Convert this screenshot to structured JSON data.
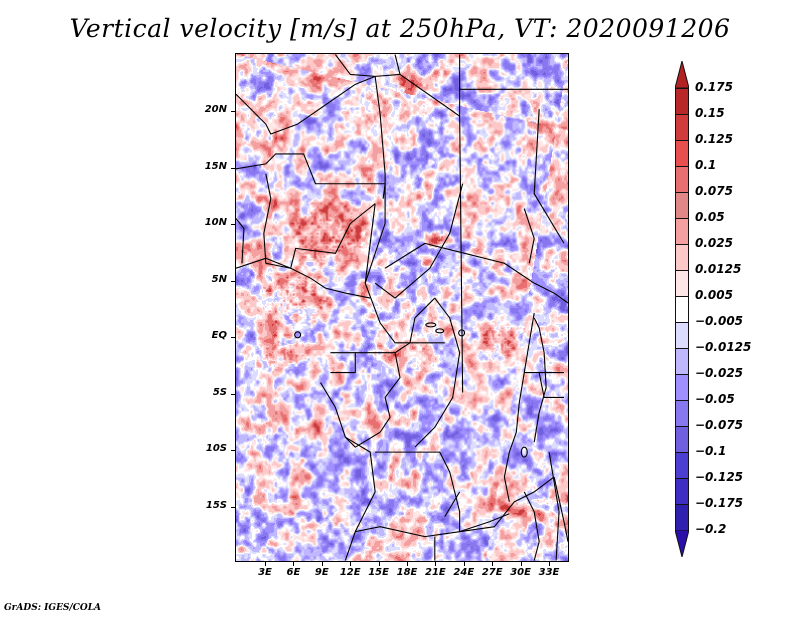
{
  "title": "Vertical velocity [m/s] at 250hPa, VT: 2020091206",
  "footer": "GrADS: IGES/COLA",
  "chart_data": {
    "type": "heatmap",
    "title": "Vertical velocity [m/s] at 250hPa, VT: 2020091206",
    "variable": "Vertical velocity",
    "units": "m/s",
    "level": "250hPa",
    "valid_time": "2020091206",
    "xlabel": "",
    "ylabel": "",
    "lon_range": [
      0,
      35
    ],
    "lat_range": [
      -20,
      25
    ],
    "x_ticks": [
      {
        "value": 3,
        "label": "3E"
      },
      {
        "value": 6,
        "label": "6E"
      },
      {
        "value": 9,
        "label": "9E"
      },
      {
        "value": 12,
        "label": "12E"
      },
      {
        "value": 15,
        "label": "15E"
      },
      {
        "value": 18,
        "label": "18E"
      },
      {
        "value": 21,
        "label": "21E"
      },
      {
        "value": 24,
        "label": "24E"
      },
      {
        "value": 27,
        "label": "27E"
      },
      {
        "value": 30,
        "label": "30E"
      },
      {
        "value": 33,
        "label": "33E"
      }
    ],
    "y_ticks": [
      {
        "value": 20,
        "label": "20N"
      },
      {
        "value": 15,
        "label": "15N"
      },
      {
        "value": 10,
        "label": "10N"
      },
      {
        "value": 5,
        "label": "5N"
      },
      {
        "value": 0,
        "label": "EQ"
      },
      {
        "value": -5,
        "label": "5S"
      },
      {
        "value": -10,
        "label": "10S"
      },
      {
        "value": -15,
        "label": "15S"
      }
    ],
    "grid": false,
    "legend": {
      "placement": "right",
      "type": "colorbar",
      "extend": "both",
      "levels": [
        {
          "label": "0.175",
          "color": "#b22222"
        },
        {
          "label": "0.15",
          "color": "#b82828"
        },
        {
          "label": "0.125",
          "color": "#d03c3c"
        },
        {
          "label": "0.1",
          "color": "#e85050"
        },
        {
          "label": "0.075",
          "color": "#e87070"
        },
        {
          "label": "0.05",
          "color": "#e08888"
        },
        {
          "label": "0.025",
          "color": "#f5a0a0"
        },
        {
          "label": "0.0125",
          "color": "#fcc8c8"
        },
        {
          "label": "0.005",
          "color": "#ffe6e6"
        },
        {
          "label": "-0.005",
          "color": "#ffffff"
        },
        {
          "label": "-0.0125",
          "color": "#dcdcff"
        },
        {
          "label": "-0.025",
          "color": "#c0b8ff"
        },
        {
          "label": "-0.05",
          "color": "#a090ff"
        },
        {
          "label": "-0.075",
          "color": "#8878f0"
        },
        {
          "label": "-0.1",
          "color": "#7060e0"
        },
        {
          "label": "-0.125",
          "color": "#4c3ed0"
        },
        {
          "label": "-0.175",
          "color": "#3e2ec4"
        },
        {
          "label": "-0.2",
          "color": "#3020b0"
        }
      ],
      "top_arrow_color": "#b22222",
      "bottom_arrow_color": "#2a10a8"
    }
  }
}
